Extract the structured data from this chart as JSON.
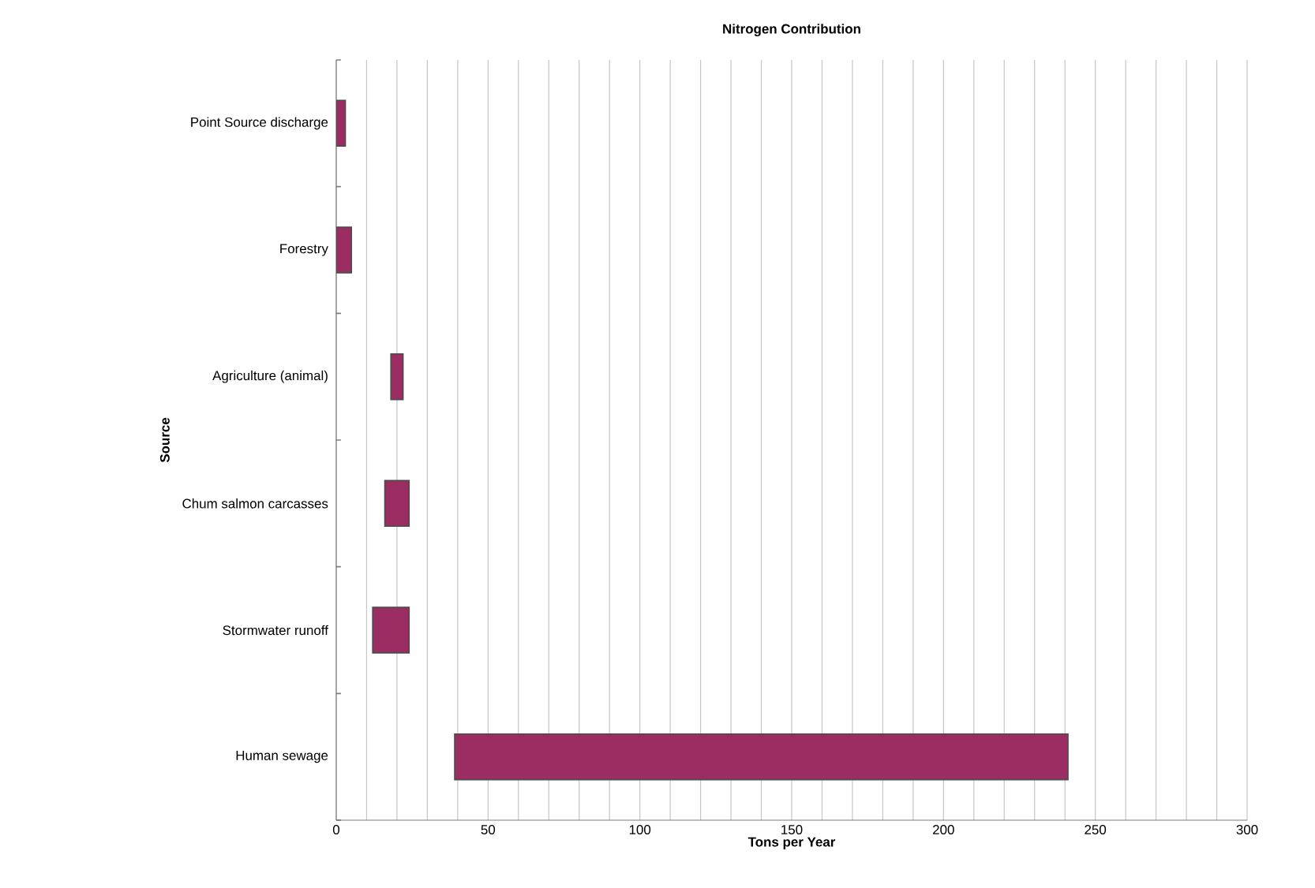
{
  "chart_data": {
    "type": "bar",
    "orientation": "horizontal",
    "title": "Nitrogen Contribution",
    "xlabel": "Tons per Year",
    "ylabel": "Source",
    "categories": [
      "Point Source discharge",
      "Forestry",
      "Agriculture (animal)",
      "Chum salmon carcasses",
      "Stormwater runoff",
      "Human sewage"
    ],
    "base": [
      0,
      0,
      18,
      16,
      12,
      39
    ],
    "values": [
      3,
      5,
      4,
      8,
      12,
      202
    ],
    "color": "#9b2d62",
    "xlim": [
      0,
      300
    ],
    "xticks": [
      0,
      {
        "value": 10,
        "label": null
      },
      {
        "value": 20,
        "label": null
      },
      {
        "value": 30,
        "label": null
      },
      {
        "value": 40,
        "label": null
      },
      50,
      {
        "value": 60,
        "label": null
      },
      {
        "value": 70,
        "label": null
      },
      {
        "value": 80,
        "label": null
      },
      {
        "value": 90,
        "label": null
      },
      100,
      {
        "value": 110,
        "label": null
      },
      {
        "value": 120,
        "label": null
      },
      {
        "value": 130,
        "label": null
      },
      {
        "value": 140,
        "label": null
      },
      150,
      {
        "value": 160,
        "label": null
      },
      {
        "value": 170,
        "label": null
      },
      {
        "value": 180,
        "label": null
      },
      {
        "value": 190,
        "label": null
      },
      200,
      {
        "value": 210,
        "label": null
      },
      {
        "value": 220,
        "label": null
      },
      {
        "value": 230,
        "label": null
      },
      {
        "value": 240,
        "label": null
      },
      250,
      {
        "value": 260,
        "label": null
      },
      {
        "value": 270,
        "label": null
      },
      {
        "value": 280,
        "label": null
      },
      {
        "value": 290,
        "label": null
      },
      300
    ],
    "grid": "x"
  }
}
